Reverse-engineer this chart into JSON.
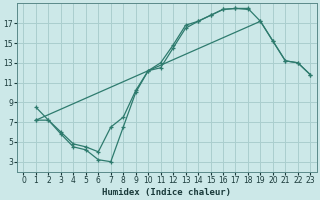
{
  "xlabel": "Humidex (Indice chaleur)",
  "bg_color": "#cce8e8",
  "grid_color": "#aacece",
  "line_color": "#2e7b6e",
  "xlim": [
    -0.5,
    23.5
  ],
  "ylim": [
    2.0,
    19.0
  ],
  "xticks": [
    0,
    1,
    2,
    3,
    4,
    5,
    6,
    7,
    8,
    9,
    10,
    11,
    12,
    13,
    14,
    15,
    16,
    17,
    18,
    19,
    20,
    21,
    22,
    23
  ],
  "yticks": [
    3,
    5,
    7,
    9,
    11,
    13,
    15,
    17
  ],
  "line1_x": [
    1,
    2,
    3,
    4,
    5,
    6,
    7,
    8,
    9,
    10,
    11,
    12,
    13,
    14,
    15,
    16,
    17,
    18
  ],
  "line1_y": [
    8.5,
    7.2,
    5.8,
    4.5,
    4.2,
    3.2,
    3.0,
    6.5,
    10.0,
    12.2,
    12.5,
    14.5,
    16.5,
    17.2,
    17.8,
    18.4,
    18.5,
    18.4
  ],
  "line2_x": [
    1,
    2,
    3,
    4,
    5,
    6,
    7,
    8,
    9,
    10,
    11,
    12,
    13,
    14,
    15,
    16,
    17,
    18,
    19,
    20,
    21,
    22,
    23
  ],
  "line2_y": [
    7.2,
    7.2,
    6.0,
    4.8,
    4.5,
    4.0,
    6.5,
    7.5,
    10.2,
    12.2,
    13.0,
    14.8,
    16.8,
    17.2,
    17.8,
    18.4,
    18.5,
    18.5,
    17.2,
    15.2,
    13.2,
    13.0,
    11.8
  ],
  "line3_x": [
    1,
    19,
    20,
    21,
    22,
    23
  ],
  "line3_y": [
    7.2,
    17.2,
    15.2,
    13.2,
    13.0,
    11.8
  ]
}
